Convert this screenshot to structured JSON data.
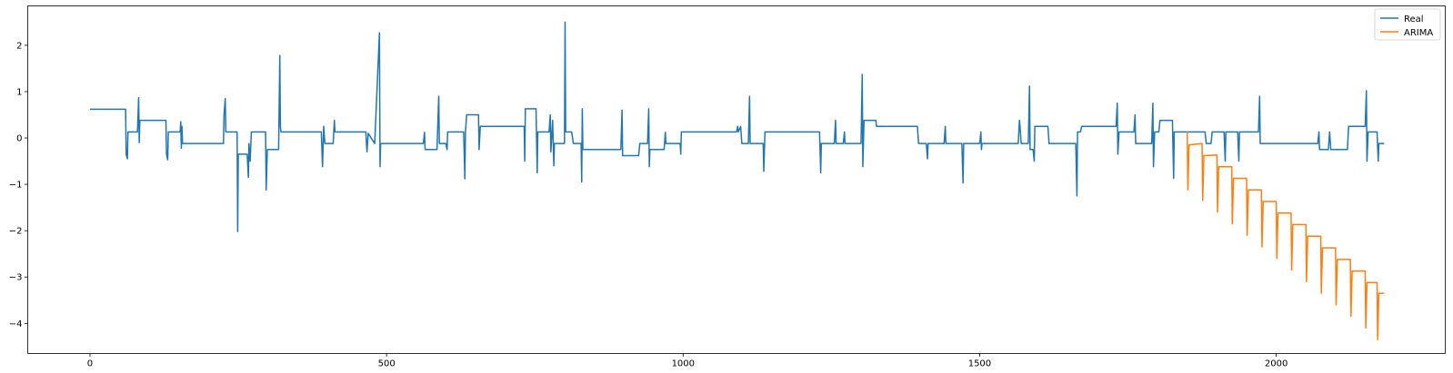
{
  "chart_data": {
    "type": "line",
    "title": "",
    "xlabel": "",
    "ylabel": "",
    "xlim": [
      -105,
      2285
    ],
    "ylim": [
      -4.65,
      2.85
    ],
    "xticks": [
      0,
      500,
      1000,
      1500,
      2000
    ],
    "xtick_labels": [
      "0",
      "500",
      "1000",
      "1500",
      "2000"
    ],
    "yticks": [
      2,
      1,
      0,
      -1,
      -2,
      -3,
      -4
    ],
    "ytick_labels": [
      "2",
      "1",
      "0",
      "−1",
      "−2",
      "−3",
      "−4"
    ],
    "grid": false,
    "legend_position": "top-right",
    "series": [
      {
        "name": "Real",
        "color": "#1f77b4",
        "points": [
          [
            0,
            0.62
          ],
          [
            60,
            0.62
          ],
          [
            61,
            -0.35
          ],
          [
            63,
            -0.45
          ],
          [
            64,
            0.13
          ],
          [
            80,
            0.13
          ],
          [
            82,
            0.87
          ],
          [
            83,
            -0.1
          ],
          [
            84,
            0.38
          ],
          [
            128,
            0.38
          ],
          [
            129,
            -0.35
          ],
          [
            131,
            -0.47
          ],
          [
            132,
            0.13
          ],
          [
            152,
            0.13
          ],
          [
            153,
            0.35
          ],
          [
            154,
            -0.22
          ],
          [
            155,
            0.25
          ],
          [
            156,
            -0.12
          ],
          [
            225,
            -0.12
          ],
          [
            226,
            0.5
          ],
          [
            228,
            0.85
          ],
          [
            229,
            0.13
          ],
          [
            248,
            0.13
          ],
          [
            249,
            -2.02
          ],
          [
            250,
            -0.35
          ],
          [
            265,
            -0.35
          ],
          [
            267,
            -0.85
          ],
          [
            268,
            -0.12
          ],
          [
            270,
            -0.5
          ],
          [
            272,
            0.13
          ],
          [
            296,
            0.13
          ],
          [
            297,
            -1.12
          ],
          [
            299,
            -0.25
          ],
          [
            318,
            -0.25
          ],
          [
            320,
            1.78
          ],
          [
            321,
            0.25
          ],
          [
            322,
            0.13
          ],
          [
            390,
            0.13
          ],
          [
            392,
            -0.62
          ],
          [
            394,
            0.25
          ],
          [
            396,
            -0.12
          ],
          [
            410,
            -0.12
          ],
          [
            412,
            0.38
          ],
          [
            413,
            0.13
          ],
          [
            465,
            0.13
          ],
          [
            467,
            -0.3
          ],
          [
            469,
            0.1
          ],
          [
            480,
            -0.12
          ],
          [
            488,
            2.27
          ],
          [
            489,
            -0.62
          ],
          [
            490,
            -0.12
          ],
          [
            562,
            -0.12
          ],
          [
            564,
            0.12
          ],
          [
            565,
            -0.25
          ],
          [
            585,
            -0.25
          ],
          [
            588,
            0.9
          ],
          [
            589,
            -0.12
          ],
          [
            600,
            -0.12
          ],
          [
            602,
            -0.25
          ],
          [
            603,
            0.13
          ],
          [
            630,
            0.13
          ],
          [
            632,
            -0.88
          ],
          [
            633,
            0.13
          ],
          [
            635,
            0.5
          ],
          [
            655,
            0.5
          ],
          [
            656,
            -0.25
          ],
          [
            658,
            0.25
          ],
          [
            732,
            0.25
          ],
          [
            733,
            -0.5
          ],
          [
            734,
            0.63
          ],
          [
            752,
            0.63
          ],
          [
            754,
            -0.75
          ],
          [
            755,
            0.13
          ],
          [
            774,
            0.13
          ],
          [
            776,
            0.5
          ],
          [
            777,
            -0.3
          ],
          [
            780,
            0.38
          ],
          [
            782,
            -0.6
          ],
          [
            783,
            -0.12
          ],
          [
            800,
            -0.12
          ],
          [
            801,
            2.5
          ],
          [
            802,
            0.13
          ],
          [
            812,
            0.13
          ],
          [
            815,
            -0.12
          ],
          [
            828,
            -0.12
          ],
          [
            829,
            -0.95
          ],
          [
            830,
            0.63
          ],
          [
            831,
            -0.25
          ],
          [
            895,
            -0.25
          ],
          [
            897,
            0.6
          ],
          [
            898,
            -0.38
          ],
          [
            925,
            -0.38
          ],
          [
            927,
            -0.12
          ],
          [
            940,
            -0.12
          ],
          [
            942,
            0.63
          ],
          [
            943,
            -0.62
          ],
          [
            944,
            -0.25
          ],
          [
            968,
            -0.25
          ],
          [
            970,
            0.12
          ],
          [
            971,
            -0.12
          ],
          [
            995,
            -0.12
          ],
          [
            996,
            -0.35
          ],
          [
            997,
            0.13
          ],
          [
            1090,
            0.13
          ],
          [
            1092,
            0.25
          ],
          [
            1093,
            0.13
          ],
          [
            1097,
            0.25
          ],
          [
            1099,
            -0.12
          ],
          [
            1110,
            -0.12
          ],
          [
            1112,
            0.9
          ],
          [
            1113,
            -0.12
          ],
          [
            1135,
            -0.12
          ],
          [
            1136,
            -0.72
          ],
          [
            1138,
            0.13
          ],
          [
            1230,
            0.13
          ],
          [
            1232,
            -0.75
          ],
          [
            1233,
            -0.12
          ],
          [
            1255,
            -0.12
          ],
          [
            1257,
            0.38
          ],
          [
            1258,
            -0.12
          ],
          [
            1270,
            -0.12
          ],
          [
            1272,
            0.13
          ],
          [
            1273,
            -0.12
          ],
          [
            1300,
            -0.12
          ],
          [
            1302,
            1.37
          ],
          [
            1303,
            -0.62
          ],
          [
            1305,
            0.38
          ],
          [
            1325,
            0.38
          ],
          [
            1326,
            0.25
          ],
          [
            1395,
            0.25
          ],
          [
            1397,
            -0.12
          ],
          [
            1410,
            -0.12
          ],
          [
            1412,
            -0.45
          ],
          [
            1413,
            -0.12
          ],
          [
            1440,
            -0.12
          ],
          [
            1442,
            0.25
          ],
          [
            1443,
            -0.12
          ],
          [
            1470,
            -0.12
          ],
          [
            1472,
            -0.97
          ],
          [
            1473,
            -0.12
          ],
          [
            1500,
            -0.12
          ],
          [
            1502,
            0.13
          ],
          [
            1503,
            -0.25
          ],
          [
            1504,
            -0.12
          ],
          [
            1565,
            -0.12
          ],
          [
            1567,
            0.38
          ],
          [
            1568,
            0.25
          ],
          [
            1570,
            -0.12
          ],
          [
            1582,
            -0.12
          ],
          [
            1584,
            1.12
          ],
          [
            1585,
            -0.25
          ],
          [
            1590,
            -0.25
          ],
          [
            1592,
            -0.5
          ],
          [
            1593,
            0.25
          ],
          [
            1615,
            0.25
          ],
          [
            1617,
            -0.12
          ],
          [
            1662,
            -0.12
          ],
          [
            1664,
            -1.25
          ],
          [
            1665,
            0.13
          ],
          [
            1670,
            0.13
          ],
          [
            1672,
            0.25
          ],
          [
            1730,
            0.25
          ],
          [
            1732,
            0.75
          ],
          [
            1733,
            -0.35
          ],
          [
            1735,
            0.13
          ],
          [
            1760,
            0.13
          ],
          [
            1762,
            0.5
          ],
          [
            1763,
            -0.12
          ],
          [
            1790,
            -0.12
          ],
          [
            1792,
            0.75
          ],
          [
            1793,
            -0.62
          ],
          [
            1795,
            0.13
          ],
          [
            1802,
            0.13
          ],
          [
            1804,
            0.38
          ],
          [
            1825,
            0.38
          ],
          [
            1827,
            -0.87
          ],
          [
            1828,
            0.13
          ],
          [
            1880,
            0.13
          ],
          [
            1882,
            -0.12
          ],
          [
            1890,
            -0.12
          ],
          [
            1892,
            0.13
          ],
          [
            1912,
            0.13
          ],
          [
            1914,
            -0.5
          ],
          [
            1915,
            0.13
          ],
          [
            1935,
            0.13
          ],
          [
            1937,
            -0.5
          ],
          [
            1938,
            0.13
          ],
          [
            1970,
            0.13
          ],
          [
            1972,
            0.9
          ],
          [
            1973,
            -0.12
          ],
          [
            2070,
            -0.12
          ],
          [
            2072,
            0.13
          ],
          [
            2073,
            -0.25
          ],
          [
            2088,
            -0.25
          ],
          [
            2090,
            0.13
          ],
          [
            2092,
            -0.25
          ],
          [
            2120,
            -0.25
          ],
          [
            2122,
            0.25
          ],
          [
            2150,
            0.25
          ],
          [
            2152,
            1.02
          ],
          [
            2153,
            -0.5
          ],
          [
            2155,
            0.13
          ],
          [
            2170,
            0.13
          ],
          [
            2172,
            -0.5
          ],
          [
            2173,
            -0.12
          ],
          [
            2182,
            -0.12
          ]
        ]
      },
      {
        "name": "ARIMA",
        "color": "#ff7f0e",
        "points": [
          [
            1850,
            0.13
          ],
          [
            1851,
            -1.12
          ],
          [
            1853,
            -0.15
          ],
          [
            1875,
            -0.12
          ],
          [
            1876,
            -1.35
          ],
          [
            1878,
            -0.38
          ],
          [
            1900,
            -0.37
          ],
          [
            1901,
            -1.6
          ],
          [
            1903,
            -0.62
          ],
          [
            1925,
            -0.62
          ],
          [
            1926,
            -1.85
          ],
          [
            1928,
            -0.87
          ],
          [
            1950,
            -0.87
          ],
          [
            1951,
            -2.1
          ],
          [
            1953,
            -1.12
          ],
          [
            1975,
            -1.12
          ],
          [
            1976,
            -2.35
          ],
          [
            1978,
            -1.37
          ],
          [
            2000,
            -1.37
          ],
          [
            2001,
            -2.6
          ],
          [
            2003,
            -1.62
          ],
          [
            2025,
            -1.62
          ],
          [
            2026,
            -2.85
          ],
          [
            2028,
            -1.87
          ],
          [
            2050,
            -1.87
          ],
          [
            2051,
            -3.1
          ],
          [
            2053,
            -2.12
          ],
          [
            2075,
            -2.12
          ],
          [
            2076,
            -3.35
          ],
          [
            2078,
            -2.37
          ],
          [
            2100,
            -2.37
          ],
          [
            2101,
            -3.6
          ],
          [
            2103,
            -2.62
          ],
          [
            2125,
            -2.62
          ],
          [
            2126,
            -3.85
          ],
          [
            2128,
            -2.87
          ],
          [
            2150,
            -2.87
          ],
          [
            2151,
            -4.1
          ],
          [
            2153,
            -3.12
          ],
          [
            2170,
            -3.12
          ],
          [
            2171,
            -4.35
          ],
          [
            2173,
            -3.35
          ],
          [
            2182,
            -3.35
          ]
        ]
      }
    ]
  }
}
